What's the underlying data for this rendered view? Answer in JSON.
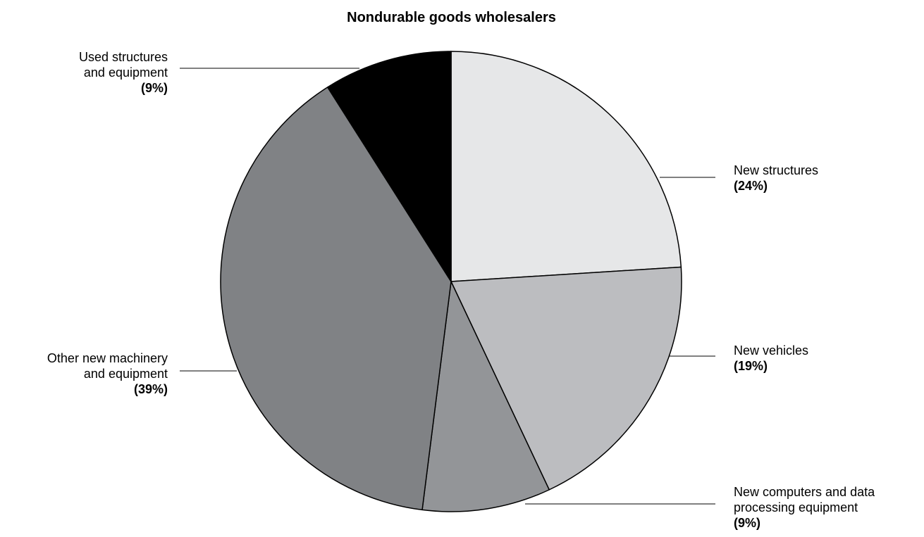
{
  "chart_data": {
    "type": "pie",
    "title": "Nondurable goods wholesalers",
    "slices": [
      {
        "label": "New structures",
        "pct_label": "(24%)",
        "value": 24,
        "color": "#e6e7e8"
      },
      {
        "label": "New vehicles",
        "pct_label": "(19%)",
        "value": 19,
        "color": "#bcbdc0"
      },
      {
        "label": "New computers and data\nprocessing equipment",
        "pct_label": "(9%)",
        "value": 9,
        "color": "#939598"
      },
      {
        "label": "Other new machinery\nand equipment",
        "pct_label": "(39%)",
        "value": 39,
        "color": "#808285"
      },
      {
        "label": "Used structures\nand equipment",
        "pct_label": "(9%)",
        "value": 9,
        "color": "#000000"
      }
    ]
  }
}
